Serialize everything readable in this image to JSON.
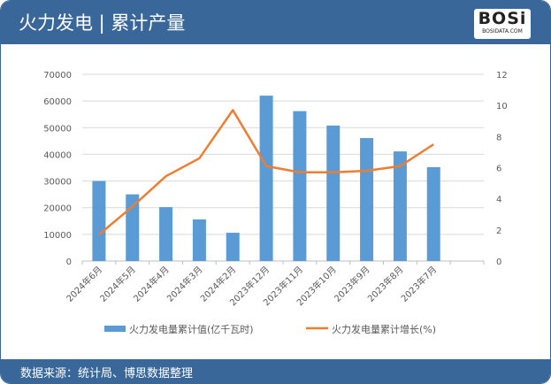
{
  "header": {
    "title": "火力发电 | 累计产量",
    "logo_text": "BOSi",
    "logo_sub": "BOSIDATA.COM"
  },
  "footer": {
    "source": "数据来源：统计局、博思数据整理"
  },
  "colors": {
    "header": "#3a6799",
    "bar": "#5b9bd5",
    "line": "#ed7d31"
  },
  "chart_data": {
    "type": "bar+line",
    "categories": [
      "2024年6月",
      "2024年5月",
      "2024年4月",
      "2024年3月",
      "2024年2月",
      "2023年12月",
      "2023年11月",
      "2023年10月",
      "2023年9月",
      "2023年8月",
      "2023年7月"
    ],
    "series": [
      {
        "name": "火力发电量累计值(亿千瓦时)",
        "type": "bar",
        "axis": "left",
        "values": [
          30000,
          25000,
          20200,
          15600,
          10600,
          62000,
          56200,
          50800,
          46100,
          41100,
          35200
        ]
      },
      {
        "name": "火力发电量累计增长(%)",
        "type": "line",
        "axis": "right",
        "values": [
          1.7,
          3.5,
          5.45,
          6.6,
          9.7,
          6.1,
          5.7,
          5.7,
          5.8,
          6.1,
          7.5
        ]
      }
    ],
    "left_axis": {
      "ylim": [
        0,
        70000
      ],
      "ticks": [
        "0",
        "10000",
        "20000",
        "30000",
        "40000",
        "50000",
        "60000",
        "70000"
      ]
    },
    "right_axis": {
      "ylim": [
        0,
        12
      ],
      "ticks": [
        "0",
        "2",
        "4",
        "6",
        "8",
        "10",
        "12"
      ]
    },
    "grid": true,
    "legend": "bottom"
  }
}
